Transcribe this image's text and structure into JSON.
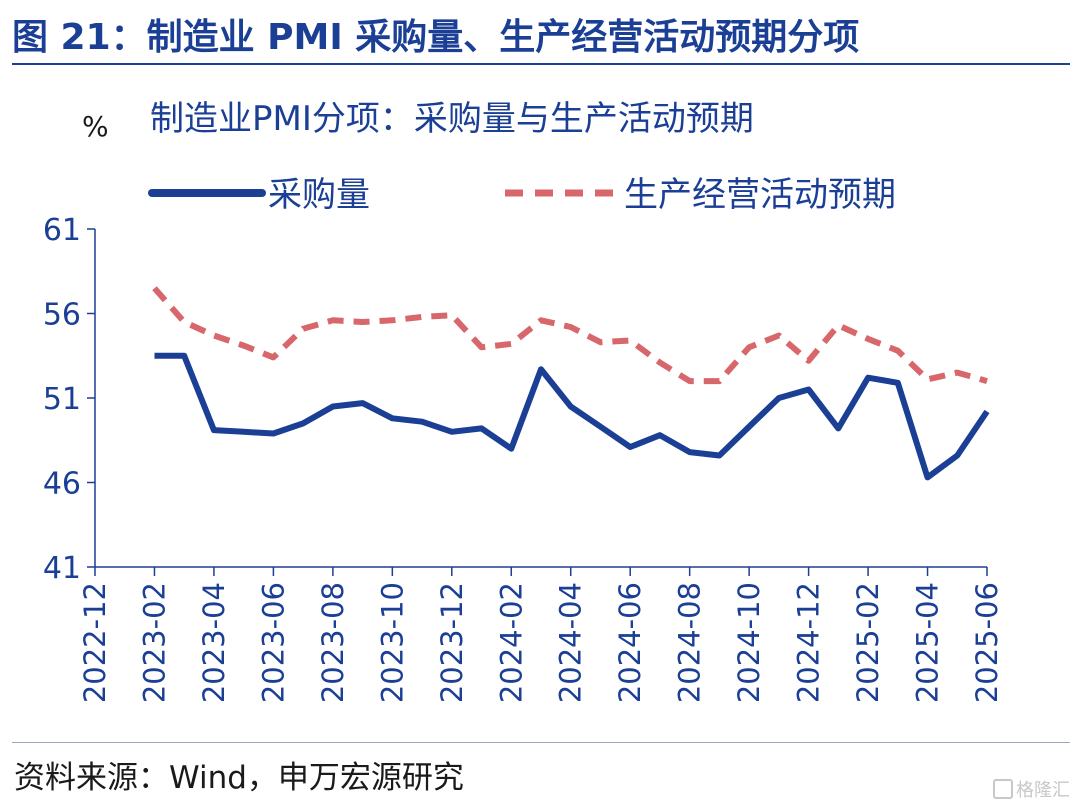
{
  "figure_title": "图 21：制造业 PMI 采购量、生产经营活动预期分项",
  "source_note": "资料来源：Wind，申万宏源研究",
  "watermark_text": "格隆汇",
  "colors": {
    "title": "#1b3f95",
    "axis": "#1b3f95",
    "series_purchase": "#1b3f95",
    "series_expectation": "#d8676c"
  },
  "chart_data": {
    "type": "line",
    "title": "制造业PMI分项：采购量与生产活动预期",
    "ylabel": "%",
    "ylim": [
      41,
      61
    ],
    "yticks": [
      41,
      46,
      51,
      56,
      61
    ],
    "grid": false,
    "legend_position": "top",
    "x": [
      "2022-12",
      "2023-01",
      "2023-02",
      "2023-03",
      "2023-04",
      "2023-05",
      "2023-06",
      "2023-07",
      "2023-08",
      "2023-09",
      "2023-10",
      "2023-11",
      "2023-12",
      "2024-01",
      "2024-02",
      "2024-03",
      "2024-04",
      "2024-05",
      "2024-06",
      "2024-07",
      "2024-08",
      "2024-09",
      "2024-10",
      "2024-11",
      "2024-12",
      "2025-01",
      "2025-02",
      "2025-03",
      "2025-04",
      "2025-05",
      "2025-06"
    ],
    "xticks": [
      "2022-12",
      "2023-02",
      "2023-04",
      "2023-06",
      "2023-08",
      "2023-10",
      "2023-12",
      "2024-02",
      "2024-04",
      "2024-06",
      "2024-08",
      "2024-10",
      "2024-12",
      "2025-02",
      "2025-04",
      "2025-06"
    ],
    "series": [
      {
        "name": "采购量",
        "style": "solid",
        "values": [
          null,
          null,
          53.5,
          53.5,
          49.1,
          49.0,
          48.9,
          49.5,
          50.5,
          50.7,
          49.8,
          49.6,
          49.0,
          49.2,
          48.0,
          52.7,
          50.5,
          49.3,
          48.1,
          48.8,
          47.8,
          47.6,
          49.3,
          51.0,
          51.5,
          49.2,
          52.2,
          51.9,
          46.3,
          47.6,
          50.2
        ]
      },
      {
        "name": "生产经营活动预期",
        "style": "dashed",
        "values": [
          null,
          null,
          57.5,
          55.5,
          54.7,
          54.1,
          53.4,
          55.1,
          55.6,
          55.5,
          55.6,
          55.8,
          55.9,
          54.0,
          54.2,
          55.6,
          55.2,
          54.3,
          54.4,
          53.1,
          52.0,
          52.0,
          54.0,
          54.7,
          53.2,
          55.3,
          54.5,
          53.8,
          52.1,
          52.5,
          52.0
        ]
      }
    ]
  }
}
